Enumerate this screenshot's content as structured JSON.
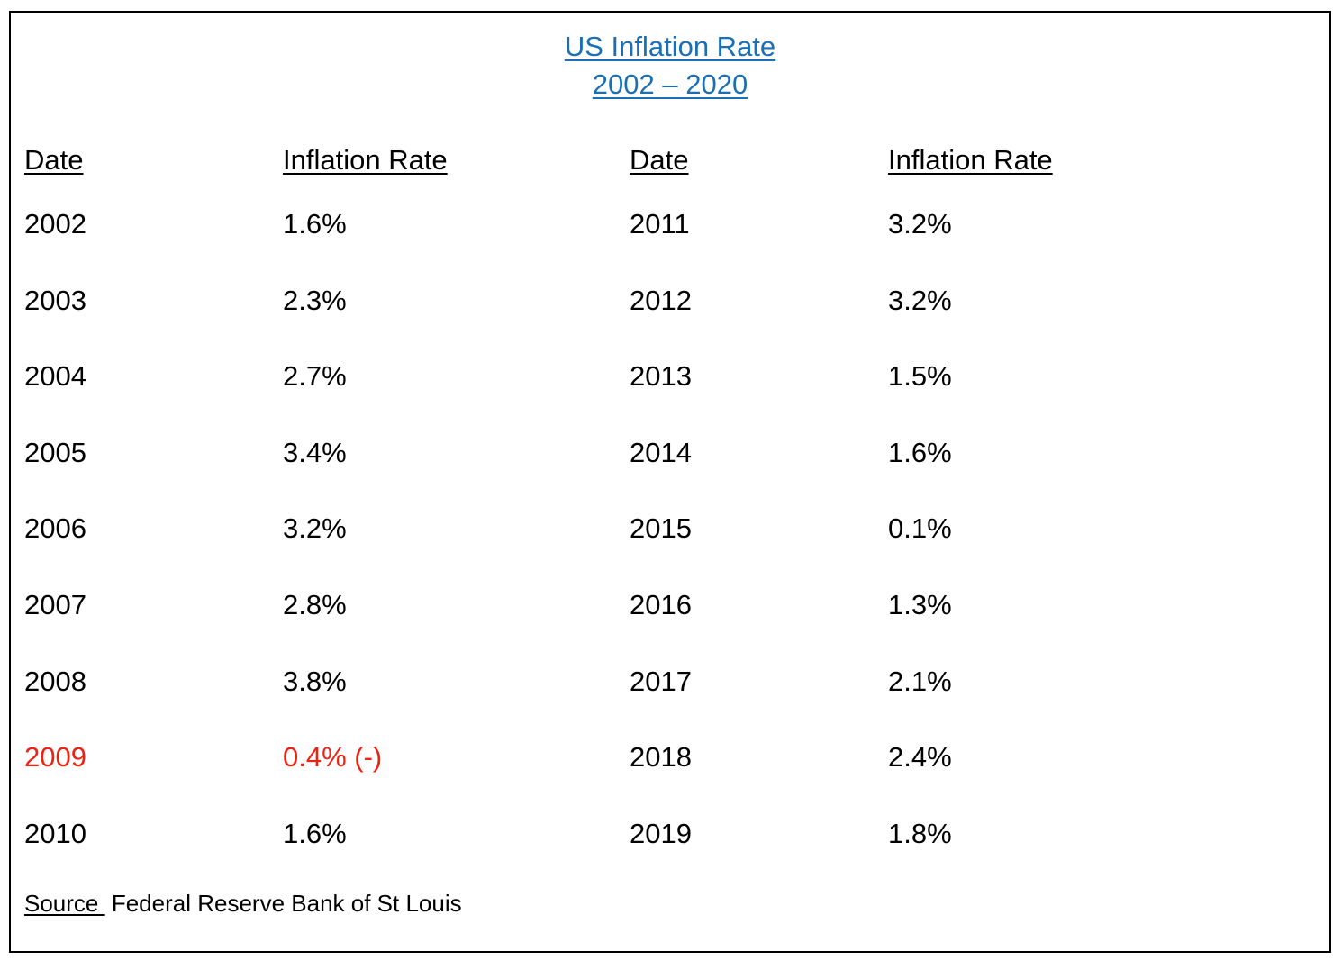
{
  "title": {
    "line1": "US Inflation Rate",
    "line2": "2002 – 2020",
    "color": "#1a6fb5"
  },
  "table": {
    "headers": {
      "date_left": "Date",
      "rate_left": "Inflation Rate",
      "date_right": "Date",
      "rate_right": "Inflation Rate"
    },
    "rows": [
      {
        "left_date": "2002",
        "left_rate": "1.6%",
        "right_date": "2011",
        "right_rate": "3.2%",
        "highlight": false
      },
      {
        "left_date": "2003",
        "left_rate": "2.3%",
        "right_date": "2012",
        "right_rate": "3.2%",
        "highlight": false
      },
      {
        "left_date": "2004",
        "left_rate": "2.7%",
        "right_date": "2013",
        "right_rate": "1.5%",
        "highlight": false
      },
      {
        "left_date": "2005",
        "left_rate": "3.4%",
        "right_date": "2014",
        "right_rate": "1.6%",
        "highlight": false
      },
      {
        "left_date": "2006",
        "left_rate": "3.2%",
        "right_date": "2015",
        "right_rate": "0.1%",
        "highlight": false
      },
      {
        "left_date": "2007",
        "left_rate": "2.8%",
        "right_date": "2016",
        "right_rate": "1.3%",
        "highlight": false
      },
      {
        "left_date": "2008",
        "left_rate": "3.8%",
        "right_date": "2017",
        "right_rate": "2.1%",
        "highlight": false
      },
      {
        "left_date": "2009",
        "left_rate": "0.4% (-)",
        "right_date": "2018",
        "right_rate": "2.4%",
        "highlight": true
      },
      {
        "left_date": "2010",
        "left_rate": "1.6%",
        "right_date": "2019",
        "right_rate": "1.8%",
        "highlight": false
      }
    ],
    "highlight_color": "#ee2211",
    "text_color": "#000000"
  },
  "source": {
    "label": "Source ",
    "text": "Federal Reserve Bank of St Louis"
  }
}
